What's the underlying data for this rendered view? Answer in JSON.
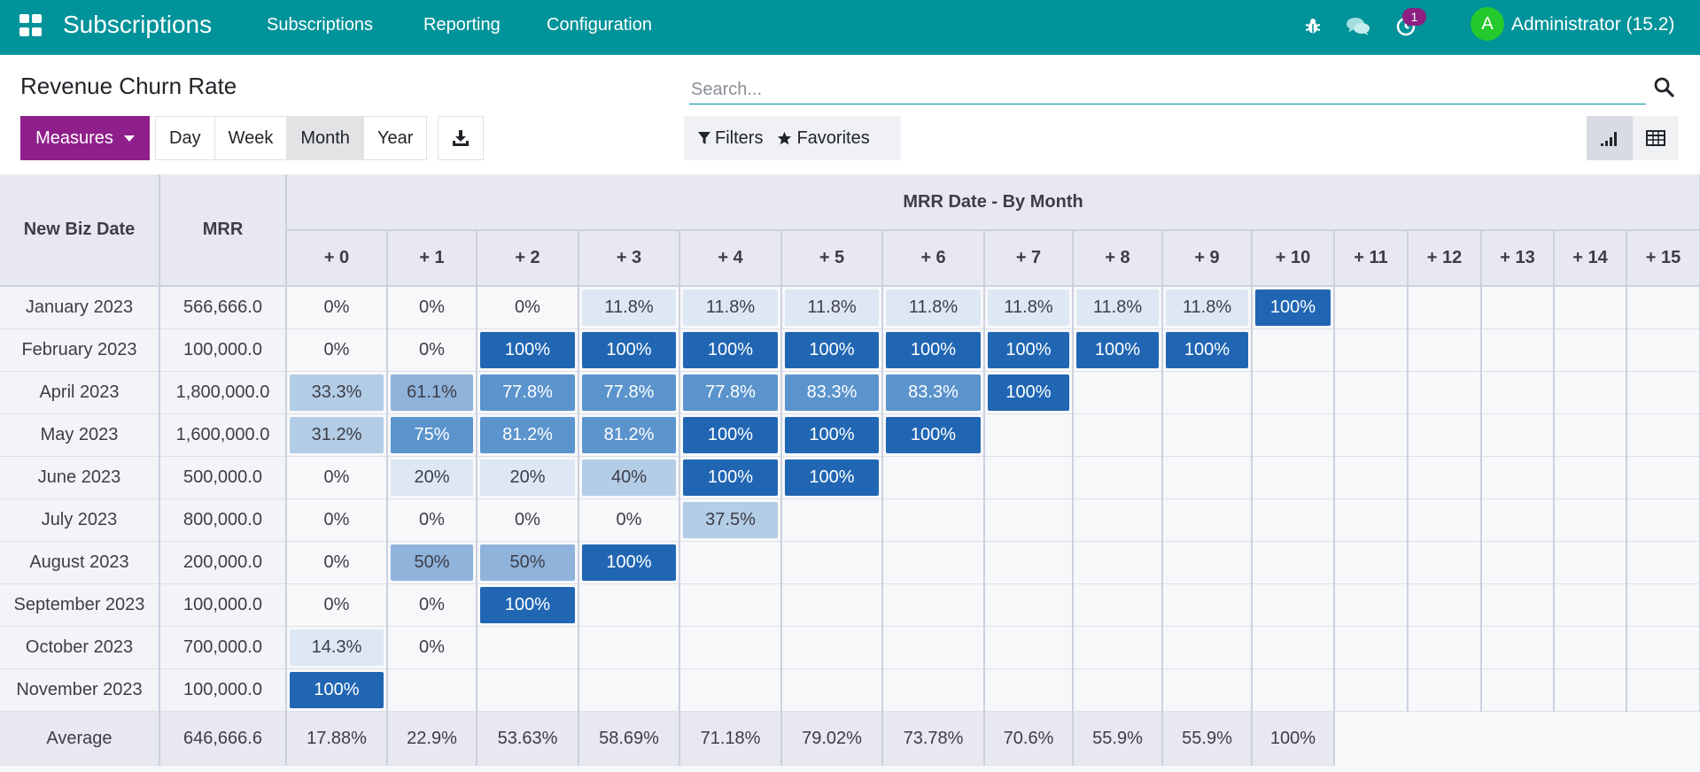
{
  "navbar": {
    "brand": "Subscriptions",
    "menu": [
      "Subscriptions",
      "Reporting",
      "Configuration"
    ],
    "icons": [
      "apps-icon",
      "bug-icon",
      "chat-icon",
      "activity-clock-icon"
    ],
    "activity_badge": "1",
    "avatar_letter": "A",
    "user": "Administrator (15.2)",
    "bg_color": "#00939a"
  },
  "control": {
    "title": "Revenue Churn Rate",
    "measures_label": "Measures",
    "intervals": [
      "Day",
      "Week",
      "Month",
      "Year"
    ],
    "active_interval": "Month",
    "search_placeholder": "Search...",
    "filters_label": "Filters",
    "favorites_label": "Favorites",
    "accent_color": "#8f1f8b"
  },
  "cohort": {
    "row_header": "New Biz Date",
    "measure_header": "MRR",
    "group_header": "MRR Date - By Month",
    "columns": [
      "+ 0",
      "+ 1",
      "+ 2",
      "+ 3",
      "+ 4",
      "+ 5",
      "+ 6",
      "+ 7",
      "+ 8",
      "+ 9",
      "+ 10",
      "+ 11",
      "+ 12",
      "+ 13",
      "+ 14",
      "+ 15"
    ],
    "rows": [
      {
        "label": "January 2023",
        "mrr": "566,666.0",
        "values": [
          "0%",
          "0%",
          "0%",
          "11.8%",
          "11.8%",
          "11.8%",
          "11.8%",
          "11.8%",
          "11.8%",
          "11.8%",
          "100%"
        ]
      },
      {
        "label": "February 2023",
        "mrr": "100,000.0",
        "values": [
          "0%",
          "0%",
          "100%",
          "100%",
          "100%",
          "100%",
          "100%",
          "100%",
          "100%",
          "100%"
        ]
      },
      {
        "label": "April 2023",
        "mrr": "1,800,000.0",
        "values": [
          "33.3%",
          "61.1%",
          "77.8%",
          "77.8%",
          "77.8%",
          "83.3%",
          "83.3%",
          "100%"
        ]
      },
      {
        "label": "May 2023",
        "mrr": "1,600,000.0",
        "values": [
          "31.2%",
          "75%",
          "81.2%",
          "81.2%",
          "100%",
          "100%",
          "100%"
        ]
      },
      {
        "label": "June 2023",
        "mrr": "500,000.0",
        "values": [
          "0%",
          "20%",
          "20%",
          "40%",
          "100%",
          "100%"
        ]
      },
      {
        "label": "July 2023",
        "mrr": "800,000.0",
        "values": [
          "0%",
          "0%",
          "0%",
          "0%",
          "37.5%"
        ]
      },
      {
        "label": "August 2023",
        "mrr": "200,000.0",
        "values": [
          "0%",
          "50%",
          "50%",
          "100%"
        ]
      },
      {
        "label": "September 2023",
        "mrr": "100,000.0",
        "values": [
          "0%",
          "0%",
          "100%"
        ]
      },
      {
        "label": "October 2023",
        "mrr": "700,000.0",
        "values": [
          "14.3%",
          "0%"
        ]
      },
      {
        "label": "November 2023",
        "mrr": "100,000.0",
        "values": [
          "100%"
        ]
      }
    ],
    "average": {
      "label": "Average",
      "mrr": "646,666.6",
      "values": [
        "17.88%",
        "22.9%",
        "53.63%",
        "58.69%",
        "71.18%",
        "79.02%",
        "73.78%",
        "70.6%",
        "55.9%",
        "55.9%",
        "100%"
      ]
    },
    "color_scale": {
      "low": "#dde8f4",
      "mid": "#5b94cd",
      "high": "#2166b3"
    }
  }
}
